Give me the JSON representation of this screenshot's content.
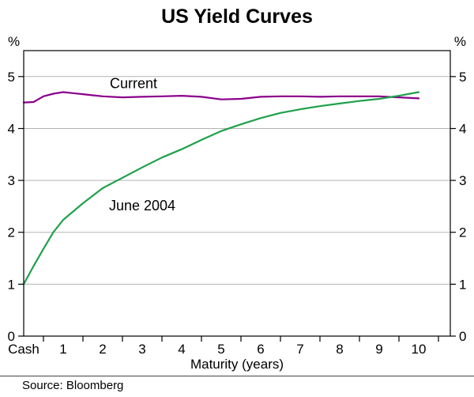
{
  "page_title": "US Yield Curves",
  "source_note": "Source: Bloomberg",
  "chart_data": {
    "type": "line",
    "title": "US Yield Curves",
    "xlabel": "Maturity (years)",
    "y_axis_unit_left": "%",
    "y_axis_unit_right": "%",
    "xlim": [
      0,
      10.8
    ],
    "ylim": [
      0,
      5.5
    ],
    "y_ticks": [
      0,
      1,
      2,
      3,
      4,
      5
    ],
    "x_tick_positions": [
      0,
      1,
      2,
      3,
      4,
      5,
      6,
      7,
      8,
      9,
      10
    ],
    "x_tick_labels": [
      "Cash",
      "1",
      "2",
      "3",
      "4",
      "5",
      "6",
      "7",
      "8",
      "9",
      "10"
    ],
    "x_minor_ticks": [
      0.5,
      1.5,
      2.5,
      3.5,
      4.5,
      5.5,
      6.5,
      7.5,
      8.5,
      9.5,
      10.5
    ],
    "grid": true,
    "legend_position": "inline-labels",
    "source": "Source: Bloomberg",
    "colors": {
      "grid": "#b3b3b3",
      "axis": "#000000"
    },
    "series": [
      {
        "name": "Current",
        "color": "#8B008B",
        "label": {
          "text": "Current",
          "x": 2.78,
          "y": 4.78
        },
        "x": [
          0,
          0.25,
          0.5,
          0.75,
          1,
          1.25,
          1.5,
          2,
          2.5,
          3,
          3.5,
          4,
          4.5,
          5,
          5.5,
          6,
          6.5,
          7,
          7.5,
          8,
          8.5,
          9,
          9.5,
          10
        ],
        "y": [
          4.5,
          4.51,
          4.62,
          4.67,
          4.7,
          4.68,
          4.66,
          4.62,
          4.6,
          4.61,
          4.62,
          4.63,
          4.61,
          4.56,
          4.57,
          4.61,
          4.62,
          4.62,
          4.61,
          4.62,
          4.62,
          4.62,
          4.6,
          4.58
        ]
      },
      {
        "name": "June 2004",
        "color": "#1FA04A",
        "label": {
          "text": "June 2004",
          "x": 3.0,
          "y": 2.42
        },
        "x": [
          0,
          0.25,
          0.5,
          0.75,
          1,
          1.5,
          2,
          2.5,
          3,
          3.5,
          4,
          4.5,
          5,
          5.5,
          6,
          6.5,
          7,
          7.5,
          8,
          8.5,
          9,
          9.5,
          10
        ],
        "y": [
          1.0,
          1.35,
          1.68,
          2.0,
          2.24,
          2.56,
          2.85,
          3.05,
          3.25,
          3.44,
          3.6,
          3.78,
          3.95,
          4.08,
          4.2,
          4.3,
          4.37,
          4.43,
          4.48,
          4.53,
          4.57,
          4.63,
          4.7
        ]
      }
    ]
  }
}
